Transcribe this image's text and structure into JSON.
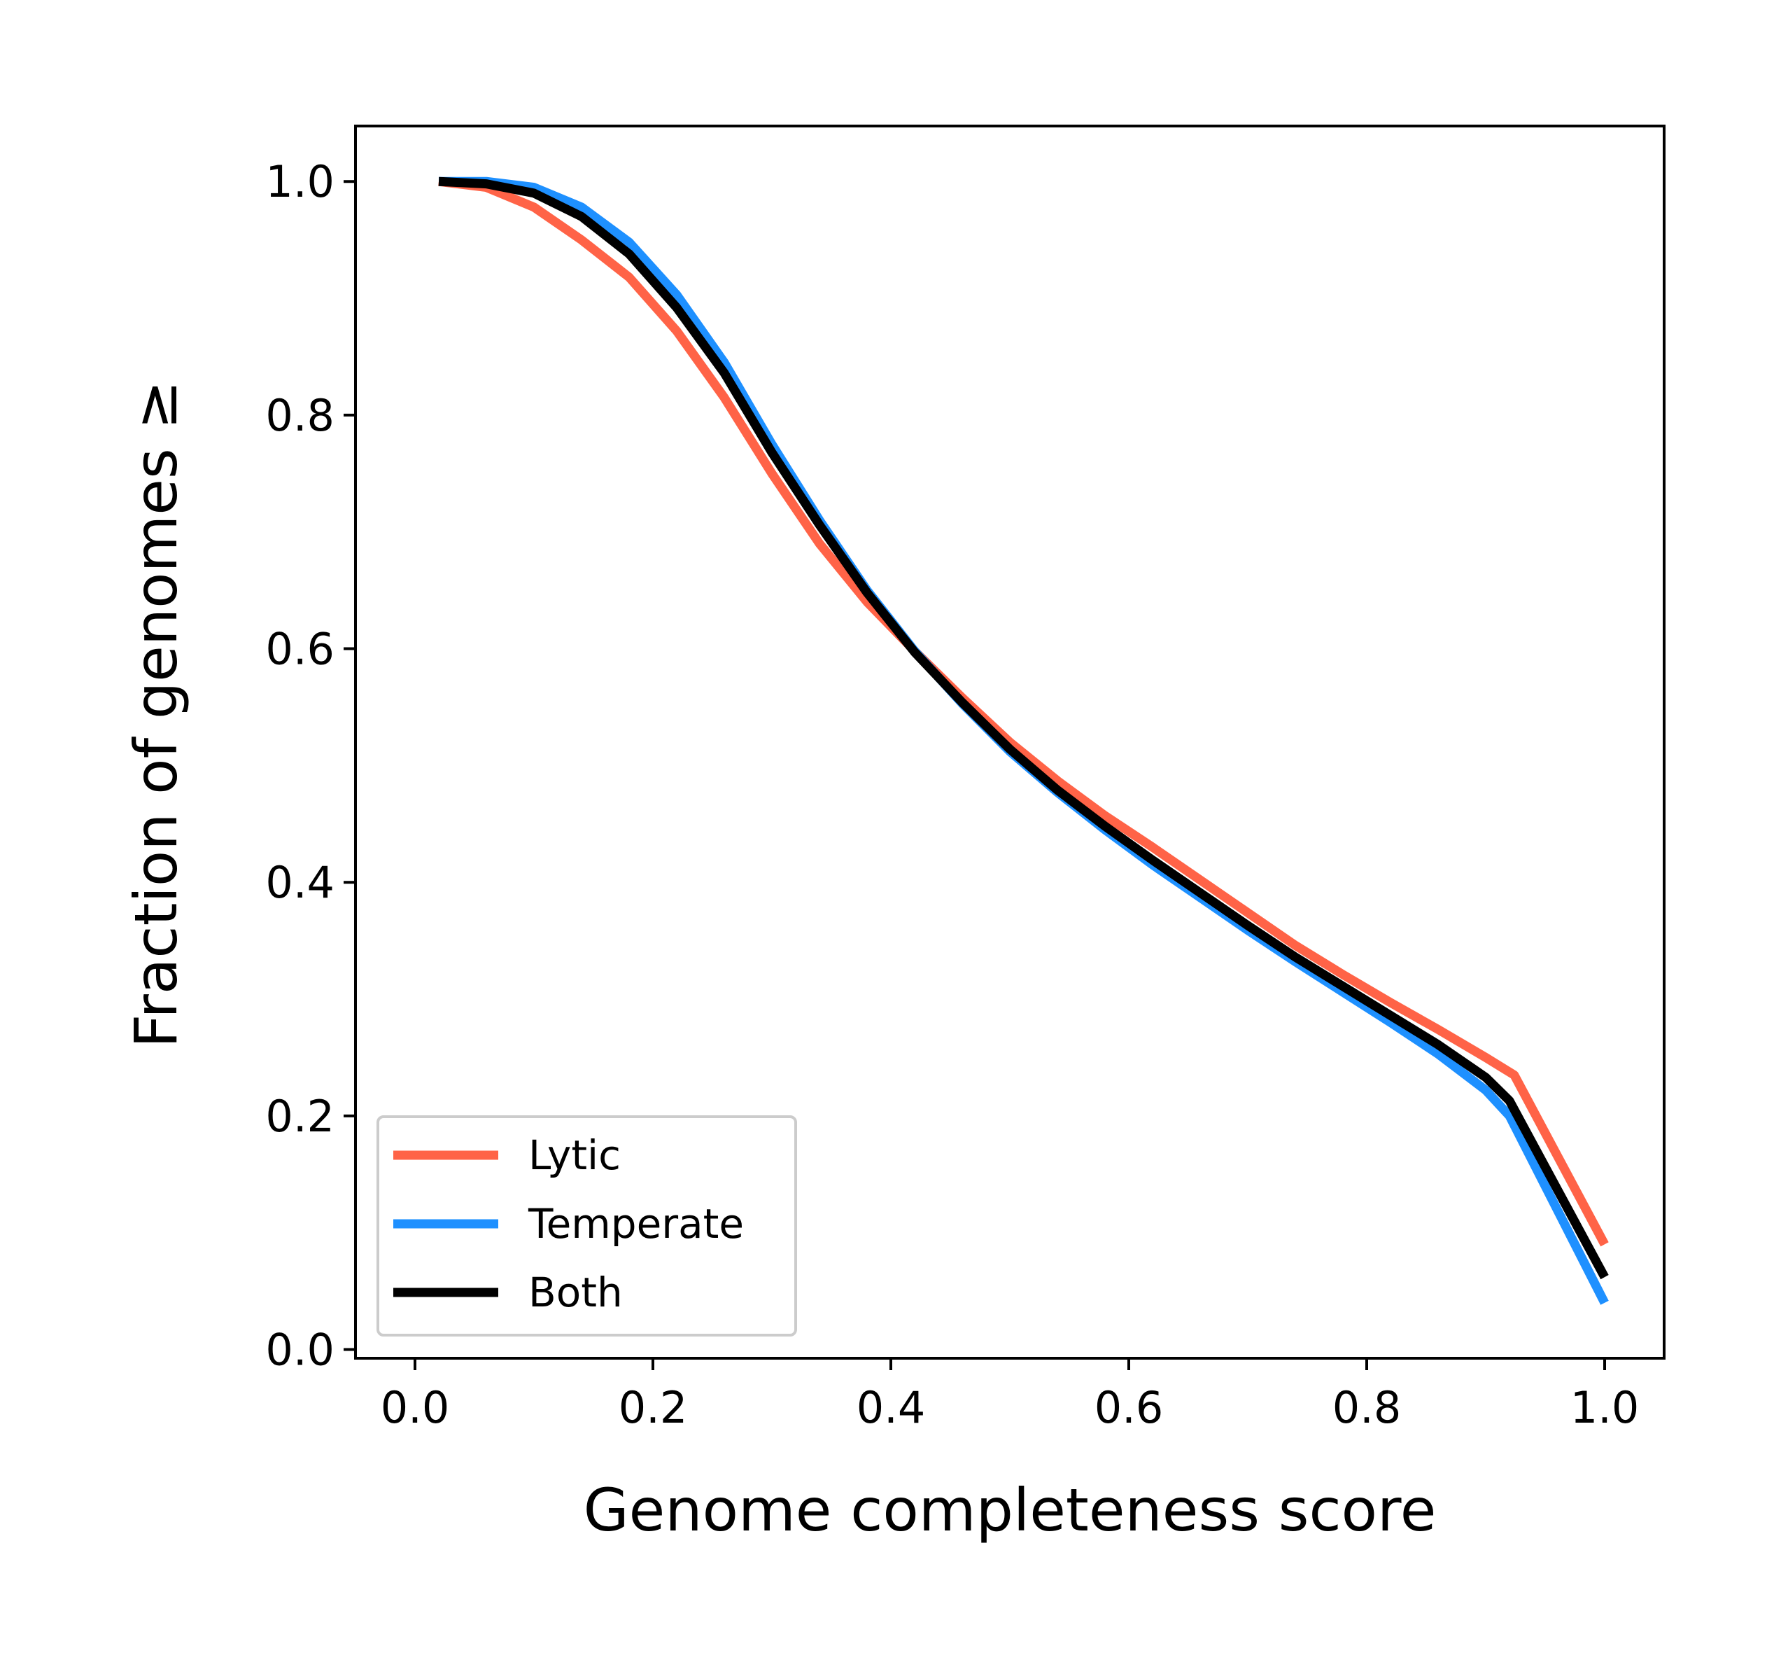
{
  "chart_data": {
    "type": "line",
    "title": "",
    "xlabel": "Genome completeness score",
    "ylabel": "Fraction of genomes ≥",
    "xlim": [
      -0.05,
      1.05
    ],
    "ylim": [
      -0.0075,
      1.0475
    ],
    "xticks": [
      0.0,
      0.2,
      0.4,
      0.6,
      0.8,
      1.0
    ],
    "xtick_labels": [
      "0.0",
      "0.2",
      "0.4",
      "0.6",
      "0.8",
      "1.0"
    ],
    "yticks": [
      0.0,
      0.2,
      0.4,
      0.6,
      0.8,
      1.0
    ],
    "ytick_labels": [
      "0.0",
      "0.2",
      "0.4",
      "0.6",
      "0.8",
      "1.0"
    ],
    "grid": false,
    "legend_position": "lower-left",
    "series": [
      {
        "name": "Lytic",
        "color": "#ff6347",
        "x": [
          0.02,
          0.06,
          0.1,
          0.14,
          0.18,
          0.22,
          0.26,
          0.3,
          0.34,
          0.38,
          0.42,
          0.46,
          0.5,
          0.54,
          0.58,
          0.62,
          0.66,
          0.7,
          0.74,
          0.78,
          0.82,
          0.86,
          0.9,
          0.924,
          1.0
        ],
        "y": [
          1.0,
          0.995,
          0.978,
          0.95,
          0.918,
          0.872,
          0.815,
          0.75,
          0.69,
          0.64,
          0.598,
          0.558,
          0.52,
          0.487,
          0.457,
          0.43,
          0.402,
          0.374,
          0.346,
          0.321,
          0.297,
          0.274,
          0.25,
          0.235,
          0.09
        ]
      },
      {
        "name": "Temperate",
        "color": "#1e90ff",
        "x": [
          0.02,
          0.06,
          0.1,
          0.14,
          0.18,
          0.22,
          0.26,
          0.3,
          0.34,
          0.38,
          0.42,
          0.46,
          0.5,
          0.54,
          0.58,
          0.62,
          0.66,
          0.7,
          0.74,
          0.78,
          0.82,
          0.86,
          0.9,
          0.92,
          1.0
        ],
        "y": [
          1.0,
          1.0,
          0.995,
          0.978,
          0.948,
          0.903,
          0.845,
          0.775,
          0.71,
          0.65,
          0.598,
          0.553,
          0.512,
          0.477,
          0.445,
          0.415,
          0.387,
          0.359,
          0.332,
          0.306,
          0.28,
          0.253,
          0.222,
          0.2,
          0.04
        ]
      },
      {
        "name": "Both",
        "color": "#000000",
        "x": [
          0.02,
          0.06,
          0.1,
          0.14,
          0.18,
          0.22,
          0.26,
          0.3,
          0.34,
          0.38,
          0.42,
          0.46,
          0.5,
          0.54,
          0.58,
          0.62,
          0.66,
          0.7,
          0.74,
          0.78,
          0.82,
          0.86,
          0.9,
          0.92,
          1.0
        ],
        "y": [
          1.0,
          0.998,
          0.99,
          0.97,
          0.938,
          0.892,
          0.836,
          0.768,
          0.706,
          0.648,
          0.597,
          0.554,
          0.514,
          0.479,
          0.448,
          0.419,
          0.391,
          0.363,
          0.336,
          0.311,
          0.286,
          0.261,
          0.233,
          0.213,
          0.062
        ]
      }
    ]
  }
}
